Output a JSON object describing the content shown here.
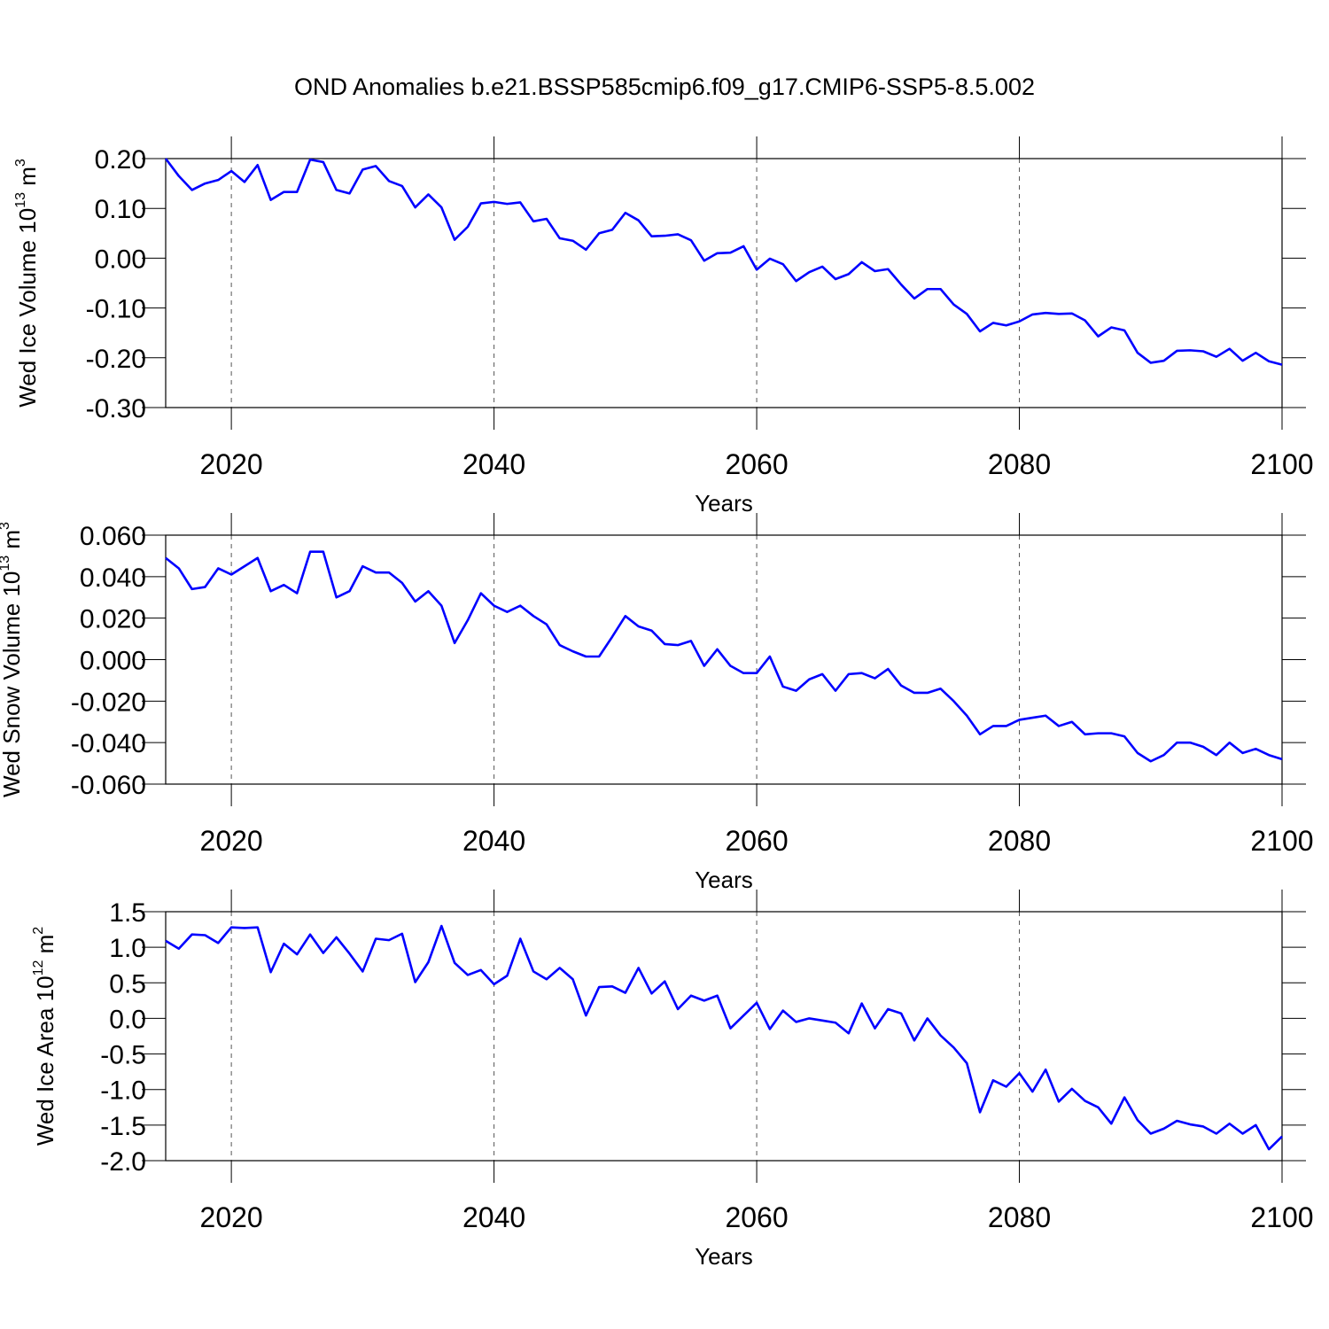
{
  "title": "OND Anomalies b.e21.BSSP585cmip6.f09_g17.CMIP6-SSP5-8.5.002",
  "chart_data": [
    {
      "type": "line",
      "ylabel": [
        "Wed Ice Volume 10",
        "13",
        " m",
        "3"
      ],
      "xlabel": "Years",
      "color": "#0000ff",
      "grid": true,
      "xlim": [
        2015,
        2100
      ],
      "xticks": [
        2020,
        2040,
        2060,
        2080,
        2100
      ],
      "ylim": [
        -0.3,
        0.2
      ],
      "yticks": [
        {
          "value": -0.3,
          "label": "-0.30"
        },
        {
          "value": -0.2,
          "label": "-0.20"
        },
        {
          "value": -0.1,
          "label": "-0.10"
        },
        {
          "value": 0,
          "label": "0.00"
        },
        {
          "value": 0.1,
          "label": "0.10"
        },
        {
          "value": 0.2,
          "label": "0.20"
        }
      ],
      "x": [
        2015,
        2016,
        2017,
        2018,
        2019,
        2020,
        2021,
        2022,
        2023,
        2024,
        2025,
        2026,
        2027,
        2028,
        2029,
        2030,
        2031,
        2032,
        2033,
        2034,
        2035,
        2036,
        2037,
        2038,
        2039,
        2040,
        2041,
        2042,
        2043,
        2044,
        2045,
        2046,
        2047,
        2048,
        2049,
        2050,
        2051,
        2052,
        2053,
        2054,
        2055,
        2056,
        2057,
        2058,
        2059,
        2060,
        2061,
        2062,
        2063,
        2064,
        2065,
        2066,
        2067,
        2068,
        2069,
        2070,
        2071,
        2072,
        2073,
        2074,
        2075,
        2076,
        2077,
        2078,
        2079,
        2080,
        2081,
        2082,
        2083,
        2084,
        2085,
        2086,
        2087,
        2088,
        2089,
        2090,
        2091,
        2092,
        2093,
        2094,
        2095,
        2096,
        2097,
        2098,
        2099,
        2100
      ],
      "values": [
        0.2,
        0.165,
        0.137,
        0.15,
        0.157,
        0.175,
        0.153,
        0.187,
        0.117,
        0.133,
        0.133,
        0.198,
        0.193,
        0.137,
        0.13,
        0.178,
        0.185,
        0.155,
        0.145,
        0.102,
        0.128,
        0.102,
        0.037,
        0.063,
        0.11,
        0.113,
        0.109,
        0.112,
        0.074,
        0.079,
        0.04,
        0.035,
        0.017,
        0.05,
        0.057,
        0.091,
        0.076,
        0.044,
        0.045,
        0.048,
        0.036,
        -0.005,
        0.01,
        0.011,
        0.024,
        -0.023,
        -0.001,
        -0.012,
        -0.046,
        -0.028,
        -0.017,
        -0.042,
        -0.032,
        -0.008,
        -0.026,
        -0.022,
        -0.053,
        -0.081,
        -0.062,
        -0.062,
        -0.093,
        -0.112,
        -0.147,
        -0.13,
        -0.135,
        -0.127,
        -0.113,
        -0.11,
        -0.112,
        -0.111,
        -0.125,
        -0.157,
        -0.139,
        -0.145,
        -0.19,
        -0.21,
        -0.206,
        -0.186,
        -0.185,
        -0.187,
        -0.198,
        -0.182,
        -0.206,
        -0.19,
        -0.207,
        -0.214
      ]
    },
    {
      "type": "line",
      "ylabel": [
        "Wed Snow Volume 10",
        "13",
        " m",
        "3"
      ],
      "xlabel": "Years",
      "color": "#0000ff",
      "grid": true,
      "xlim": [
        2015,
        2100
      ],
      "xticks": [
        2020,
        2040,
        2060,
        2080,
        2100
      ],
      "ylim": [
        -0.06,
        0.06
      ],
      "yticks": [
        {
          "value": -0.06,
          "label": "-0.060"
        },
        {
          "value": -0.04,
          "label": "-0.040"
        },
        {
          "value": -0.02,
          "label": "-0.020"
        },
        {
          "value": 0,
          "label": "0.000"
        },
        {
          "value": 0.02,
          "label": "0.020"
        },
        {
          "value": 0.04,
          "label": "0.040"
        },
        {
          "value": 0.06,
          "label": "0.060"
        }
      ],
      "x": [
        2015,
        2016,
        2017,
        2018,
        2019,
        2020,
        2021,
        2022,
        2023,
        2024,
        2025,
        2026,
        2027,
        2028,
        2029,
        2030,
        2031,
        2032,
        2033,
        2034,
        2035,
        2036,
        2037,
        2038,
        2039,
        2040,
        2041,
        2042,
        2043,
        2044,
        2045,
        2046,
        2047,
        2048,
        2049,
        2050,
        2051,
        2052,
        2053,
        2054,
        2055,
        2056,
        2057,
        2058,
        2059,
        2060,
        2061,
        2062,
        2063,
        2064,
        2065,
        2066,
        2067,
        2068,
        2069,
        2070,
        2071,
        2072,
        2073,
        2074,
        2075,
        2076,
        2077,
        2078,
        2079,
        2080,
        2081,
        2082,
        2083,
        2084,
        2085,
        2086,
        2087,
        2088,
        2089,
        2090,
        2091,
        2092,
        2093,
        2094,
        2095,
        2096,
        2097,
        2098,
        2099,
        2100
      ],
      "values": [
        0.049,
        0.044,
        0.034,
        0.035,
        0.044,
        0.041,
        0.045,
        0.049,
        0.033,
        0.036,
        0.032,
        0.052,
        0.052,
        0.03,
        0.033,
        0.045,
        0.042,
        0.042,
        0.037,
        0.028,
        0.033,
        0.026,
        0.008,
        0.019,
        0.032,
        0.026,
        0.023,
        0.026,
        0.021,
        0.017,
        0.007,
        0.004,
        0.0015,
        0.0015,
        0.011,
        0.021,
        0.016,
        0.014,
        0.0075,
        0.007,
        0.009,
        -0.003,
        0.005,
        -0.003,
        -0.0065,
        -0.0065,
        0.0015,
        -0.013,
        -0.015,
        -0.0095,
        -0.007,
        -0.015,
        -0.007,
        -0.0065,
        -0.009,
        -0.0045,
        -0.0125,
        -0.016,
        -0.016,
        -0.014,
        -0.02,
        -0.027,
        -0.036,
        -0.032,
        -0.032,
        -0.029,
        -0.028,
        -0.027,
        -0.032,
        -0.03,
        -0.036,
        -0.0355,
        -0.0355,
        -0.037,
        -0.045,
        -0.049,
        -0.046,
        -0.04,
        -0.04,
        -0.042,
        -0.046,
        -0.04,
        -0.045,
        -0.043,
        -0.046,
        -0.048
      ]
    },
    {
      "type": "line",
      "ylabel": [
        "Wed Ice Area 10",
        "12",
        " m",
        "2"
      ],
      "xlabel": "Years",
      "color": "#0000ff",
      "grid": true,
      "xlim": [
        2015,
        2100
      ],
      "xticks": [
        2020,
        2040,
        2060,
        2080,
        2100
      ],
      "ylim": [
        -2,
        1.5
      ],
      "yticks": [
        {
          "value": -2,
          "label": "-2.0"
        },
        {
          "value": -1.5,
          "label": "-1.5"
        },
        {
          "value": -1,
          "label": "-1.0"
        },
        {
          "value": -0.5,
          "label": "-0.5"
        },
        {
          "value": 0,
          "label": "0.0"
        },
        {
          "value": 0.5,
          "label": "0.5"
        },
        {
          "value": 1,
          "label": "1.0"
        },
        {
          "value": 1.5,
          "label": "1.5"
        }
      ],
      "x": [
        2015,
        2016,
        2017,
        2018,
        2019,
        2020,
        2021,
        2022,
        2023,
        2024,
        2025,
        2026,
        2027,
        2028,
        2029,
        2030,
        2031,
        2032,
        2033,
        2034,
        2035,
        2036,
        2037,
        2038,
        2039,
        2040,
        2041,
        2042,
        2043,
        2044,
        2045,
        2046,
        2047,
        2048,
        2049,
        2050,
        2051,
        2052,
        2053,
        2054,
        2055,
        2056,
        2057,
        2058,
        2059,
        2060,
        2061,
        2062,
        2063,
        2064,
        2065,
        2066,
        2067,
        2068,
        2069,
        2070,
        2071,
        2072,
        2073,
        2074,
        2075,
        2076,
        2077,
        2078,
        2079,
        2080,
        2081,
        2082,
        2083,
        2084,
        2085,
        2086,
        2087,
        2088,
        2089,
        2090,
        2091,
        2092,
        2093,
        2094,
        2095,
        2096,
        2097,
        2098,
        2099,
        2100
      ],
      "values": [
        1.09,
        0.98,
        1.18,
        1.17,
        1.06,
        1.28,
        1.27,
        1.28,
        0.65,
        1.05,
        0.9,
        1.18,
        0.92,
        1.14,
        0.91,
        0.66,
        1.12,
        1.1,
        1.19,
        0.51,
        0.79,
        1.3,
        0.78,
        0.61,
        0.68,
        0.48,
        0.6,
        1.12,
        0.66,
        0.55,
        0.71,
        0.55,
        0.04,
        0.44,
        0.45,
        0.36,
        0.71,
        0.35,
        0.52,
        0.13,
        0.32,
        0.25,
        0.32,
        -0.14,
        0.04,
        0.22,
        -0.15,
        0.11,
        -0.05,
        0,
        -0.03,
        -0.06,
        -0.21,
        0.21,
        -0.14,
        0.13,
        0.07,
        -0.31,
        0,
        -0.24,
        -0.41,
        -0.63,
        -1.32,
        -0.87,
        -0.96,
        -0.77,
        -1.03,
        -0.72,
        -1.17,
        -0.99,
        -1.16,
        -1.25,
        -1.48,
        -1.11,
        -1.43,
        -1.62,
        -1.55,
        -1.44,
        -1.49,
        -1.52,
        -1.62,
        -1.48,
        -1.62,
        -1.5,
        -1.84,
        -1.66
      ]
    }
  ]
}
